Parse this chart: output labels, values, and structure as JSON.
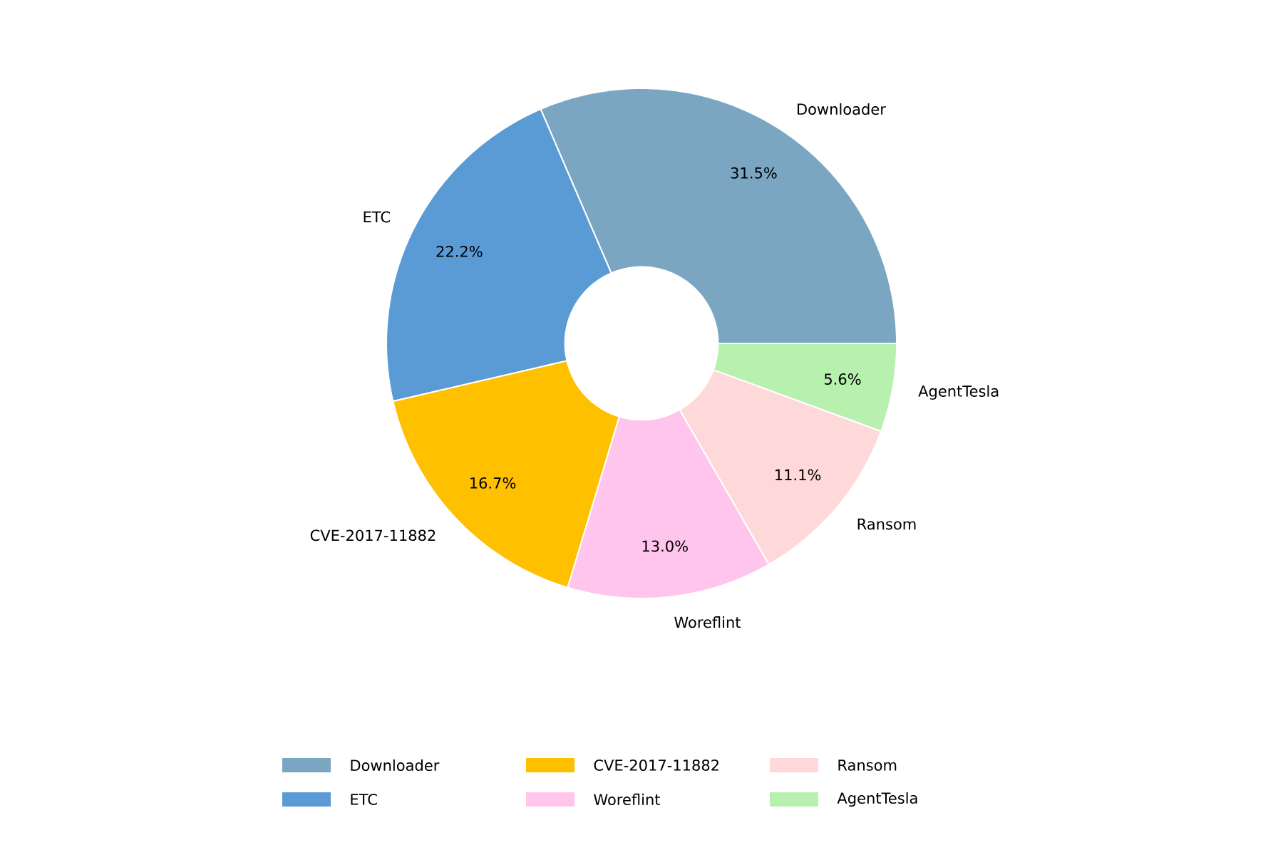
{
  "chart_data": {
    "type": "donut",
    "categories": [
      "Downloader",
      "ETC",
      "CVE-2017-11882",
      "Woreflint",
      "Ransom",
      "AgentTesla"
    ],
    "values": [
      31.5,
      22.2,
      16.7,
      13.0,
      11.1,
      5.6
    ],
    "value_labels": [
      "31.5%",
      "22.2%",
      "16.7%",
      "13.0%",
      "11.1%",
      "5.6%"
    ],
    "colors": [
      "#7aa6c2",
      "#5b9bd5",
      "#ffc000",
      "#ffc5ec",
      "#ffd9d9",
      "#b8f0b0"
    ],
    "legend": "bottom"
  }
}
